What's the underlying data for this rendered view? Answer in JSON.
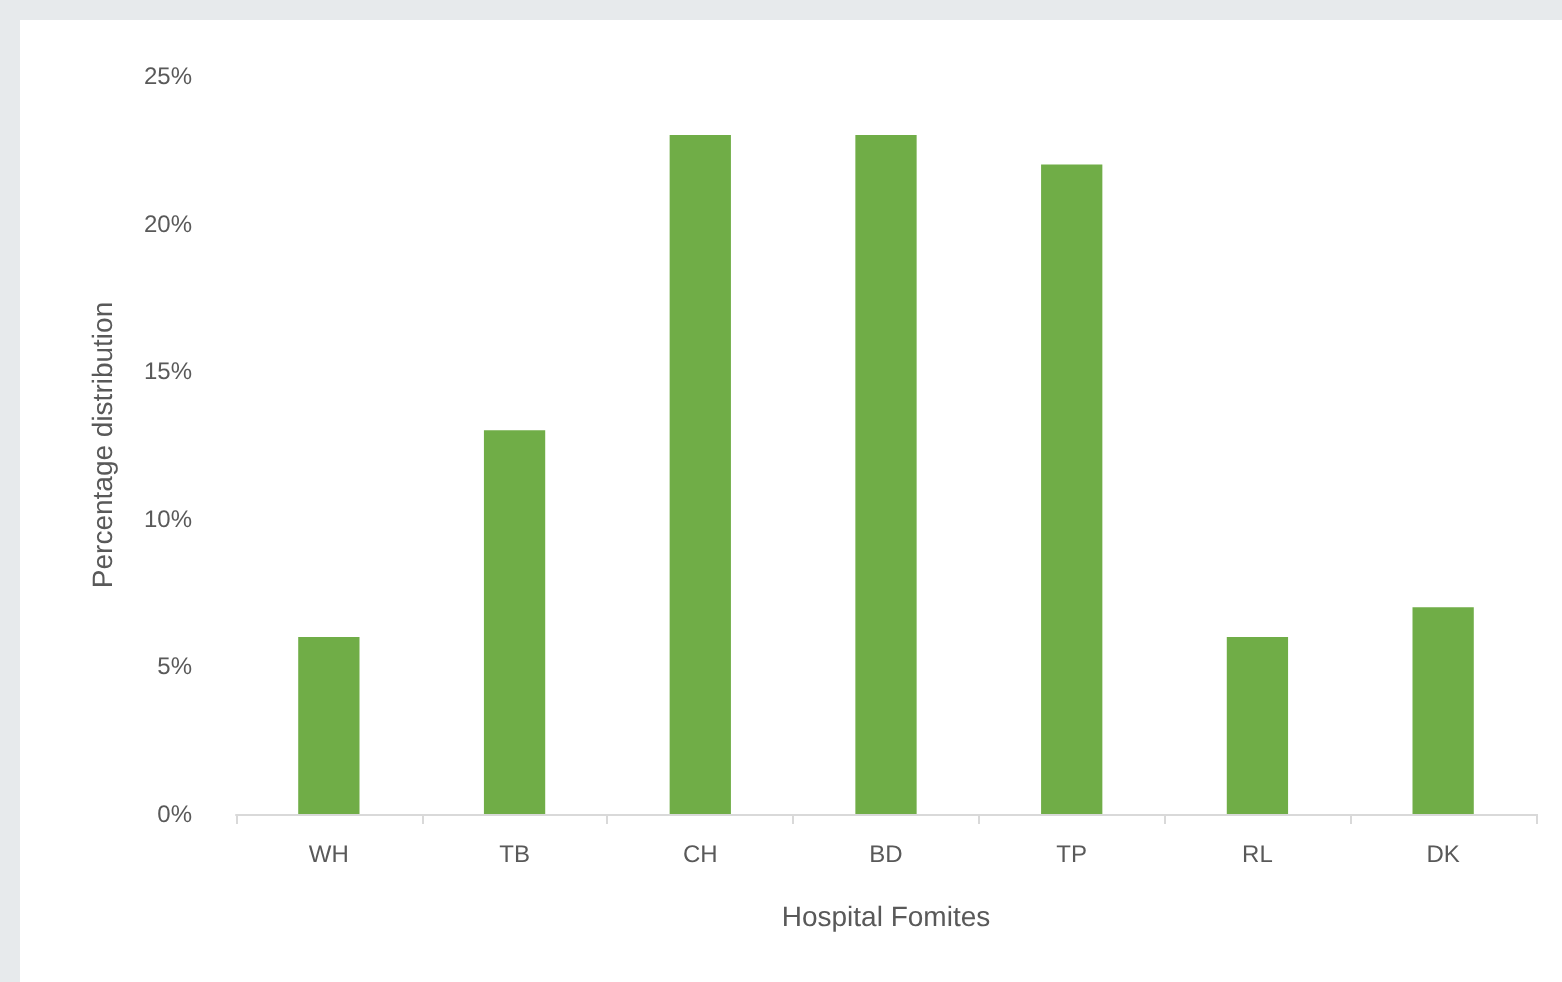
{
  "chart_data": {
    "type": "bar",
    "xlabel": "Hospital Fomites",
    "ylabel": "Percentage distribution",
    "categories": [
      "WH",
      "TB",
      "CH",
      "BD",
      "TP",
      "RL",
      "DK"
    ],
    "values": [
      6,
      13,
      23,
      23,
      22,
      6,
      7
    ],
    "color": "#70ad47",
    "ylim": [
      0,
      25
    ],
    "yticks": [
      {
        "value": 0,
        "label": "0%"
      },
      {
        "value": 5,
        "label": "5%"
      },
      {
        "value": 10,
        "label": "10%"
      },
      {
        "value": 15,
        "label": "15%"
      },
      {
        "value": 20,
        "label": "20%"
      },
      {
        "value": 25,
        "label": "25%"
      }
    ],
    "grid": false
  }
}
